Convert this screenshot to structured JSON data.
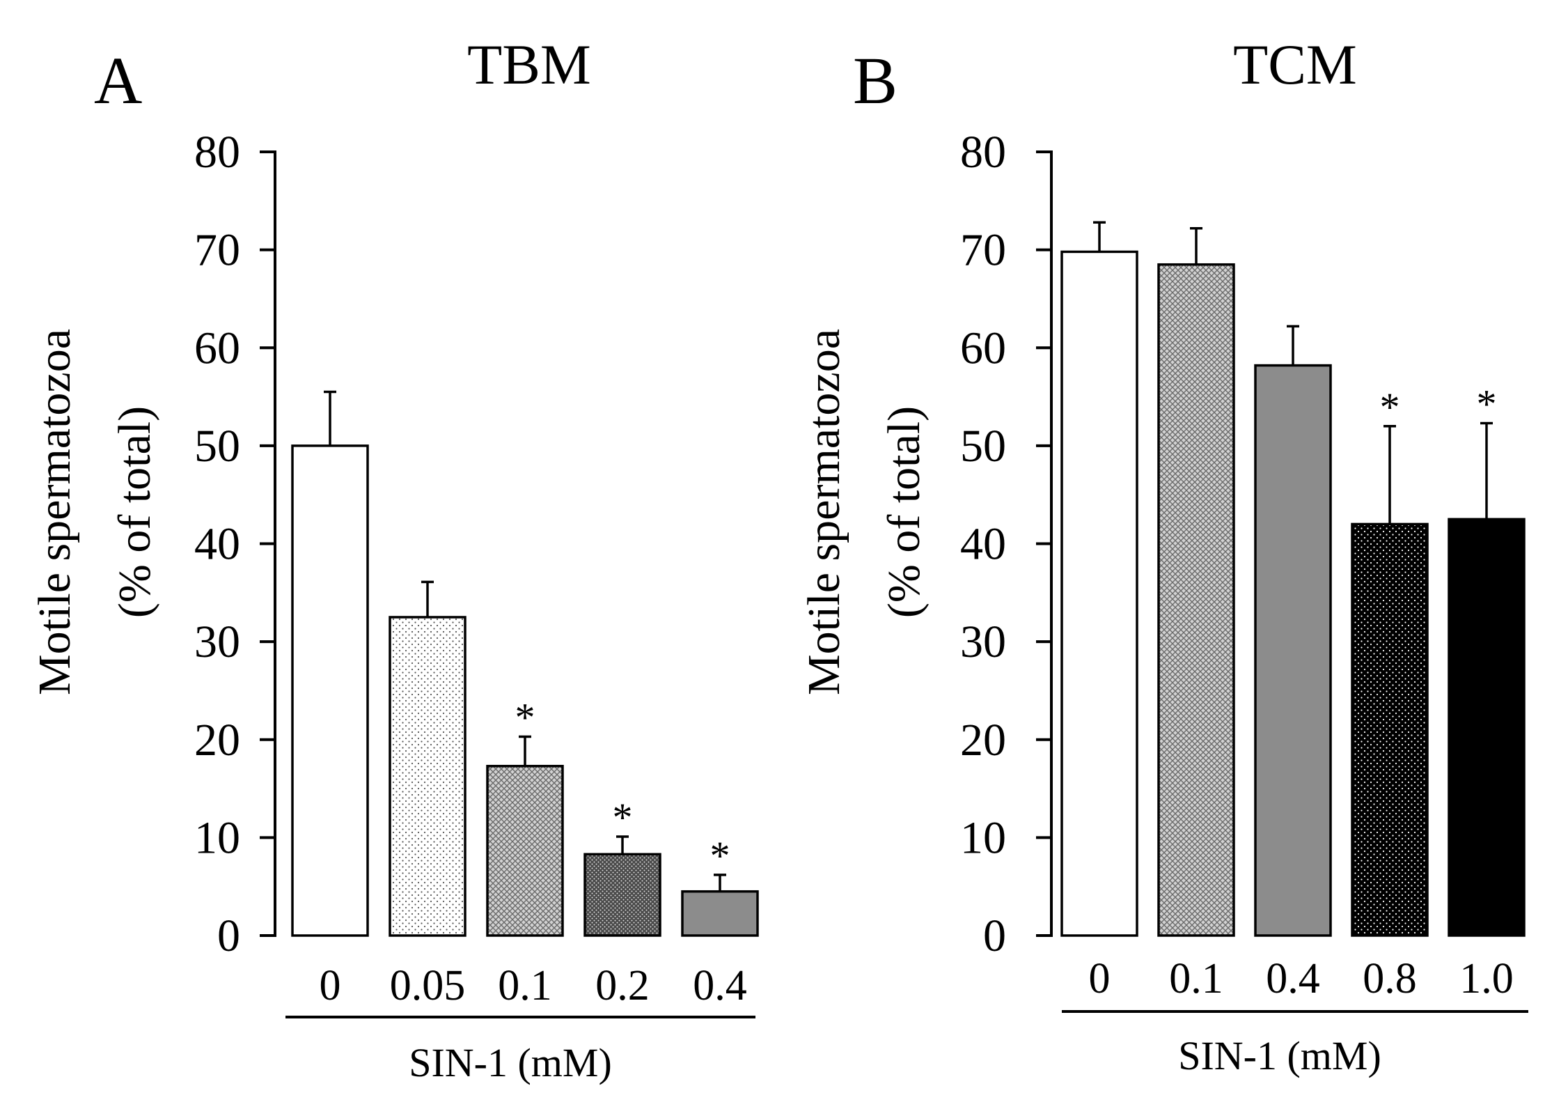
{
  "chart_data": [
    {
      "type": "bar",
      "panel": "A",
      "title": "TBM",
      "ylabel": "Motile spermatozoa",
      "ylabel2": "(% of total)",
      "xlabel": "SIN-1 (mM)",
      "ylim": [
        0,
        80
      ],
      "yticks": [
        "0",
        "10",
        "20",
        "30",
        "40",
        "50",
        "60",
        "70",
        "80"
      ],
      "categories": [
        "0",
        "0.05",
        "0.1",
        "0.2",
        "0.4"
      ],
      "values": [
        50,
        32.5,
        17.3,
        8.3,
        4.5
      ],
      "errors": [
        5.5,
        3.6,
        3.0,
        1.8,
        1.7
      ],
      "significant": [
        false,
        false,
        true,
        true,
        true
      ],
      "significance_marker": "*",
      "fills": [
        "white",
        "dots-sparse",
        "crosshatch-light",
        "dots-dense-dark",
        "gray"
      ]
    },
    {
      "type": "bar",
      "panel": "B",
      "title": "TCM",
      "ylabel": "Motile spermatozoa",
      "ylabel2": "(% of total)",
      "xlabel": "SIN-1 (mM)",
      "ylim": [
        0,
        80
      ],
      "yticks": [
        "0",
        "10",
        "20",
        "30",
        "40",
        "50",
        "60",
        "70",
        "80"
      ],
      "categories": [
        "0",
        "0.1",
        "0.4",
        "0.8",
        "1.0"
      ],
      "values": [
        69.8,
        68.5,
        58.2,
        42,
        42.5
      ],
      "errors": [
        3.0,
        3.7,
        4.0,
        10,
        9.8
      ],
      "significant": [
        false,
        false,
        false,
        true,
        true
      ],
      "significance_marker": "*",
      "fills": [
        "white",
        "crosshatch-light",
        "gray",
        "black-dots",
        "black"
      ]
    }
  ]
}
